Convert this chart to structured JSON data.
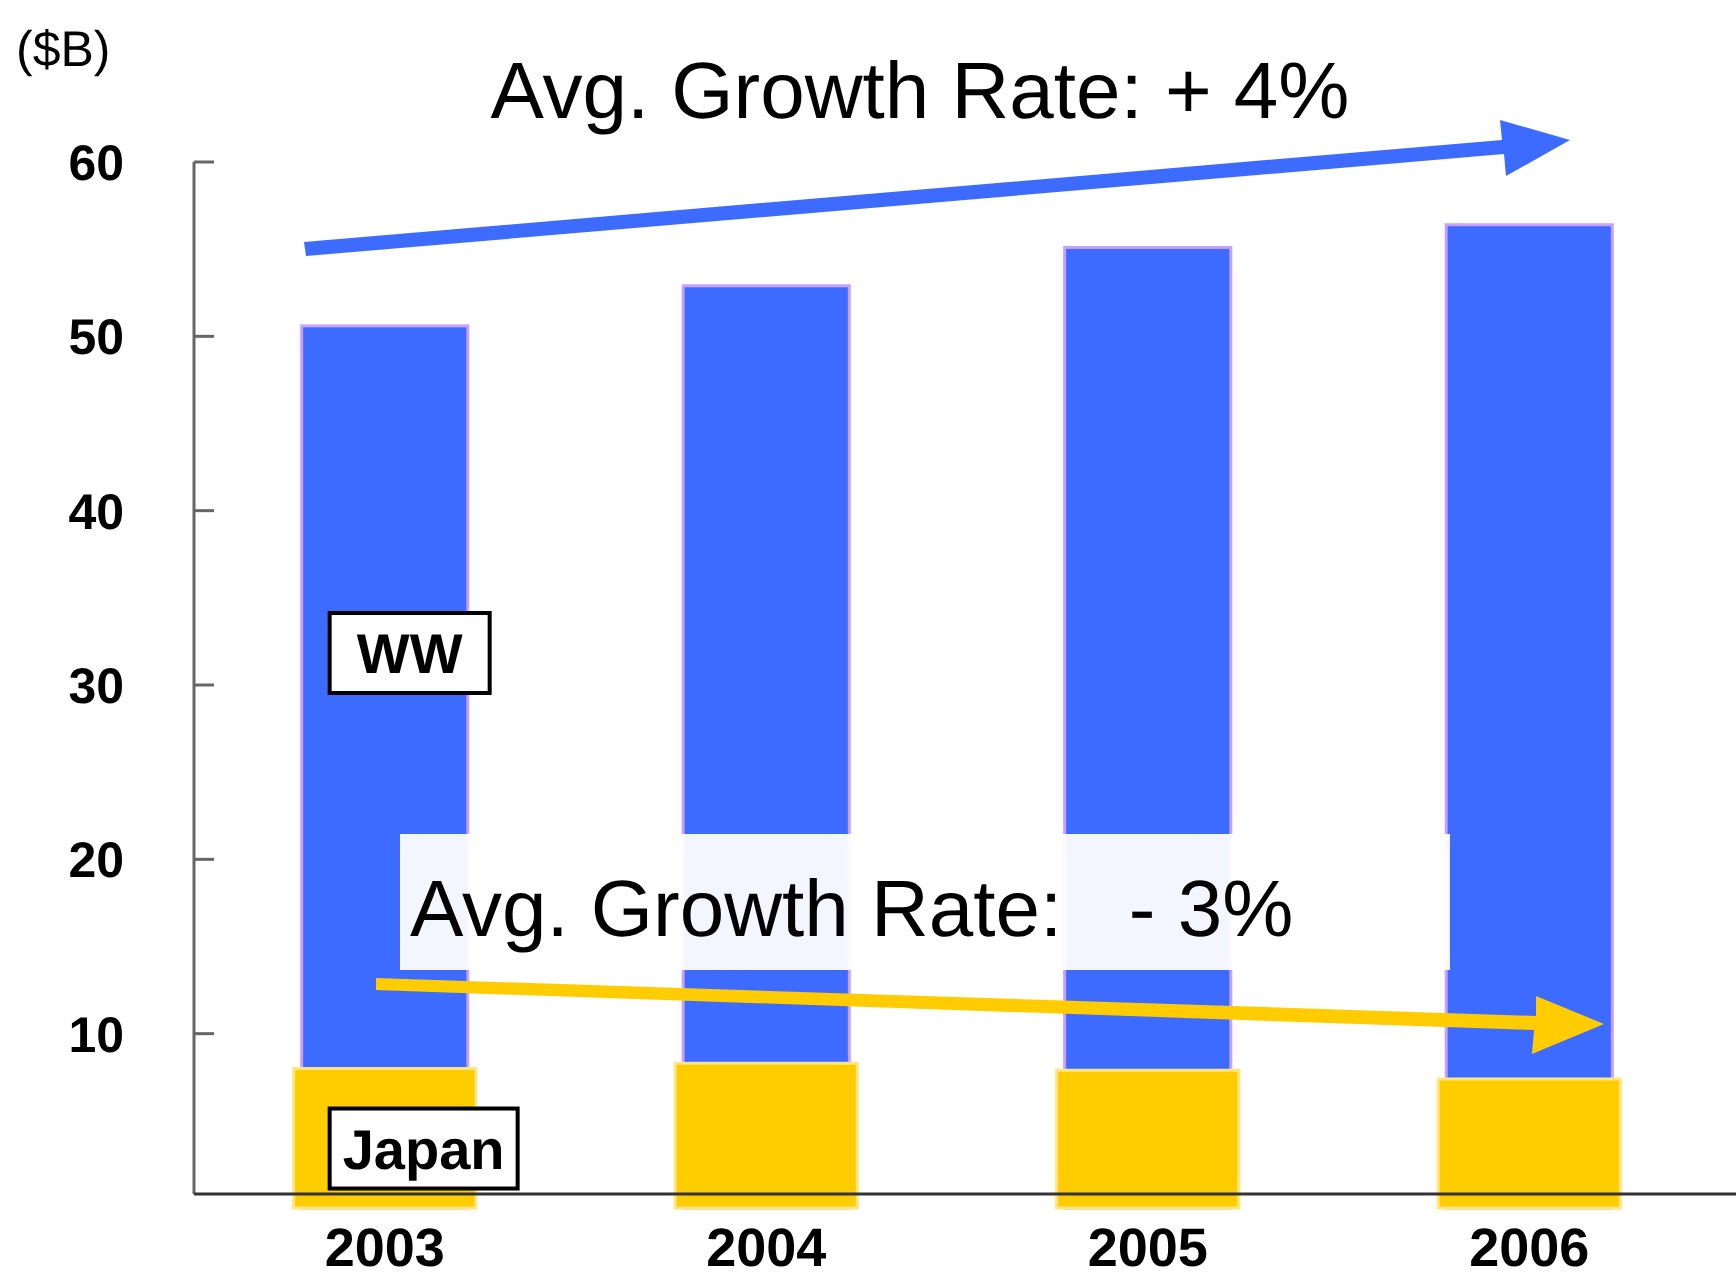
{
  "chart_data": {
    "type": "bar",
    "ylabel": "($B)",
    "categories": [
      "2003",
      "2004",
      "2005",
      "2006"
    ],
    "series": [
      {
        "name": "WW",
        "color": "#3d6bff",
        "values": [
          50.6,
          52.9,
          55.1,
          56.4
        ]
      },
      {
        "name": "Japan",
        "color": "#ffcc00",
        "values": [
          8.0,
          8.3,
          7.9,
          7.4
        ]
      }
    ],
    "ylim": [
      0,
      60
    ],
    "yticks": [
      10,
      20,
      30,
      40,
      50,
      60
    ],
    "grid": false,
    "legend": false,
    "annotations": [
      "Avg. Growth Rate: + 4%",
      "Avg. Growth Rate:   - 3%"
    ]
  }
}
